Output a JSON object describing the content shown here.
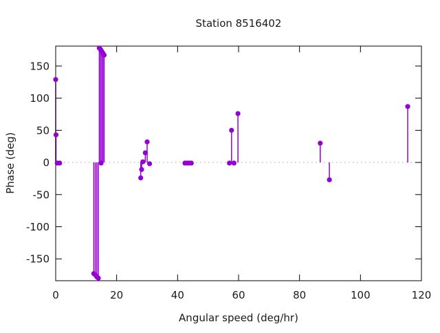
{
  "chart_data": {
    "type": "scatter",
    "subtype": "stem-impulses-with-points",
    "title": "Station 8516402",
    "xlabel": "Angular speed (deg/hr)",
    "ylabel": "Phase (deg)",
    "xlim": [
      0,
      120
    ],
    "ylim": [
      -184,
      181
    ],
    "xticks": [
      0,
      20,
      40,
      60,
      80,
      100,
      120
    ],
    "yticks": [
      -150,
      -100,
      -50,
      0,
      50,
      100,
      150
    ],
    "grid": false,
    "legend": "none",
    "marker": "filled-circle",
    "marker_color": "#9400d3",
    "axis_color": "#000000",
    "text_color": "#1a1a1a",
    "zero_line_color": "#b3b3b3",
    "zero_line_style": "dotted",
    "points": [
      [
        0.0,
        129
      ],
      [
        0.1,
        43
      ],
      [
        0.5,
        -1
      ],
      [
        1.3,
        -1
      ],
      [
        12.5,
        -173
      ],
      [
        13.0,
        -175
      ],
      [
        13.5,
        -178
      ],
      [
        14.0,
        -180
      ],
      [
        14.3,
        178
      ],
      [
        14.7,
        176
      ],
      [
        14.9,
        -1
      ],
      [
        15.1,
        173
      ],
      [
        15.5,
        170
      ],
      [
        15.9,
        167
      ],
      [
        27.9,
        -24
      ],
      [
        28.2,
        -11
      ],
      [
        28.6,
        1
      ],
      [
        29.4,
        15
      ],
      [
        30.0,
        32
      ],
      [
        30.8,
        -2
      ],
      [
        42.4,
        -1
      ],
      [
        43.1,
        -1
      ],
      [
        43.8,
        -1
      ],
      [
        44.5,
        -1
      ],
      [
        57.0,
        -1
      ],
      [
        57.7,
        50
      ],
      [
        58.5,
        -1
      ],
      [
        59.8,
        76
      ],
      [
        86.8,
        30
      ],
      [
        89.8,
        -27
      ],
      [
        115.5,
        87
      ]
    ]
  }
}
